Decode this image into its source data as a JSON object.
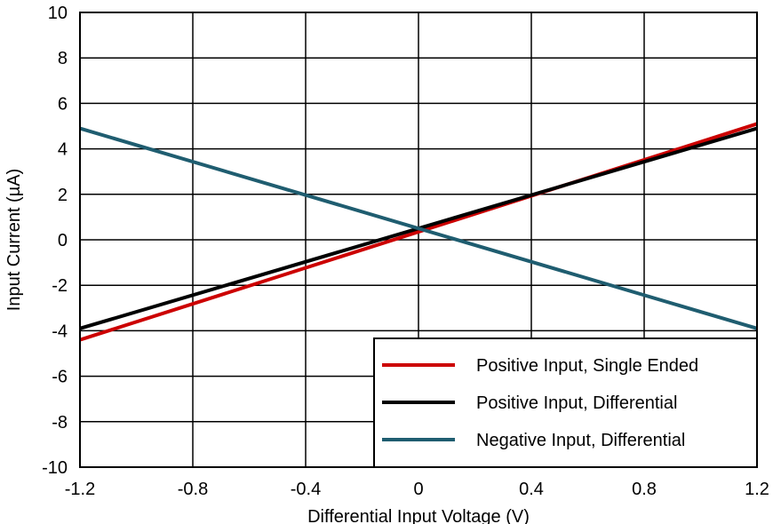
{
  "chart_data": {
    "type": "line",
    "title": "",
    "xlabel": "Differential Input Voltage (V)",
    "ylabel": "Input Current (µA)",
    "xlim": [
      -1.2,
      1.2
    ],
    "ylim": [
      -10,
      10
    ],
    "x_ticks": [
      "-1.2",
      "-0.8",
      "-0.4",
      "0",
      "0.4",
      "0.8",
      "1.2"
    ],
    "y_ticks": [
      "10",
      "8",
      "6",
      "4",
      "2",
      "0",
      "-2",
      "-4",
      "-6",
      "-8",
      "-10"
    ],
    "grid": true,
    "legend_position": "bottom-right",
    "series": [
      {
        "name": "Positive Input, Single Ended",
        "color": "#cc0000",
        "x": [
          -1.2,
          1.2
        ],
        "y": [
          -4.4,
          5.1
        ]
      },
      {
        "name": "Positive Input, Differential",
        "color": "#000000",
        "x": [
          -1.2,
          1.2
        ],
        "y": [
          -3.9,
          4.9
        ]
      },
      {
        "name": "Negative Input, Differential",
        "color": "#1f5d70",
        "x": [
          -1.2,
          1.2
        ],
        "y": [
          4.9,
          -3.9
        ]
      }
    ]
  }
}
